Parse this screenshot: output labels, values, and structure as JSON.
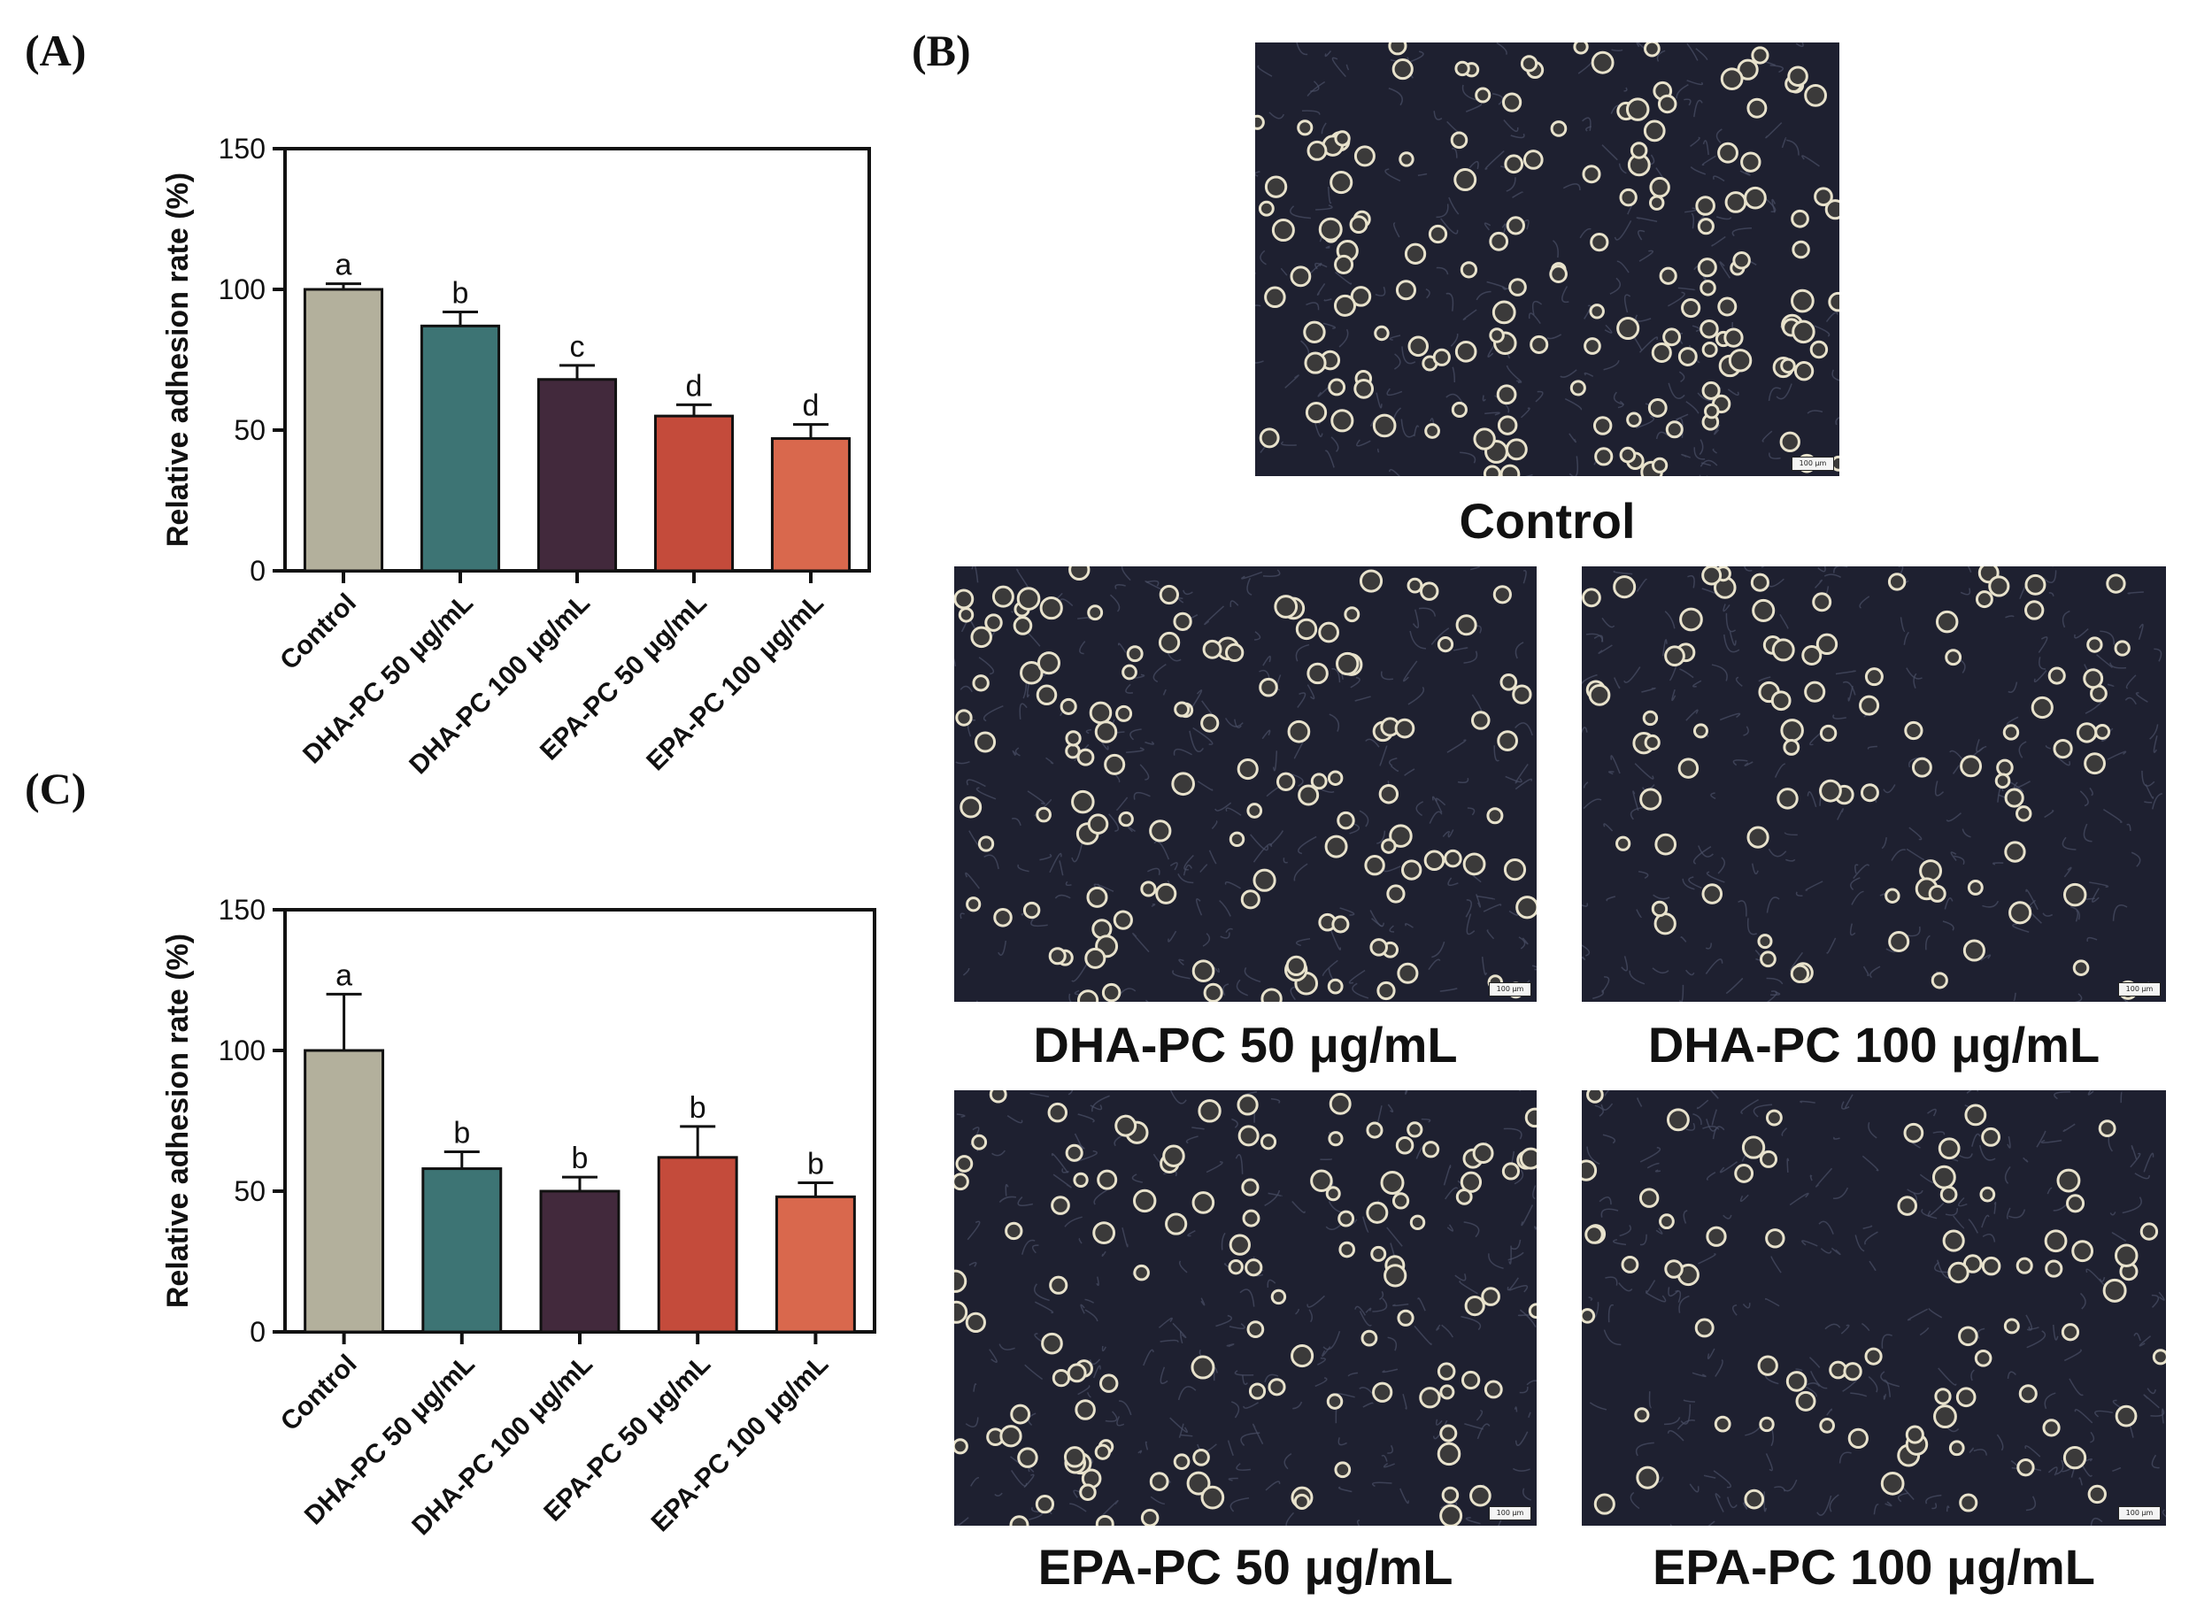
{
  "panels": {
    "a_label": "(A)",
    "b_label": "(B)",
    "c_label": "(C)"
  },
  "chart_data": [
    {
      "id": "A",
      "type": "bar",
      "categories": [
        "Control",
        "DHA-PC 50 μg/mL",
        "DHA-PC 100 μg/mL",
        "EPA-PC 50 μg/mL",
        "EPA-PC 100 μg/mL"
      ],
      "values": [
        100,
        87,
        68,
        55,
        47
      ],
      "errors": [
        2,
        5,
        5,
        4,
        5
      ],
      "significance": [
        "a",
        "b",
        "c",
        "d",
        "d"
      ],
      "colors": [
        "#b3b09c",
        "#3d7474",
        "#42293c",
        "#c44b3b",
        "#d9684d"
      ],
      "ylabel": "Relative adhesion rate (%)",
      "yticks": [
        0,
        50,
        100,
        150
      ],
      "ylim": [
        0,
        150
      ],
      "grid": false
    },
    {
      "id": "C",
      "type": "bar",
      "categories": [
        "Control",
        "DHA-PC 50 μg/mL",
        "DHA-PC 100 μg/mL",
        "EPA-PC 50 μg/mL",
        "EPA-PC 100 μg/mL"
      ],
      "values": [
        100,
        58,
        50,
        62,
        48
      ],
      "errors": [
        20,
        6,
        5,
        11,
        5
      ],
      "significance": [
        "a",
        "b",
        "b",
        "b",
        "b"
      ],
      "colors": [
        "#b3b09c",
        "#3d7474",
        "#42293c",
        "#c44b3b",
        "#d9684d"
      ],
      "ylabel": "Relative adhesion rate (%)",
      "yticks": [
        0,
        50,
        100,
        150
      ],
      "ylim": [
        0,
        150
      ],
      "grid": false
    }
  ],
  "micrographs": [
    {
      "caption": "Control",
      "scale": "100 μm"
    },
    {
      "caption": "DHA-PC 50 μg/mL",
      "scale": "100 μm"
    },
    {
      "caption": "DHA-PC 100 μg/mL",
      "scale": "100 μm"
    },
    {
      "caption": "EPA-PC 50 μg/mL",
      "scale": "100 μm"
    },
    {
      "caption": "EPA-PC 100 μg/mL",
      "scale": "100 μm"
    }
  ]
}
